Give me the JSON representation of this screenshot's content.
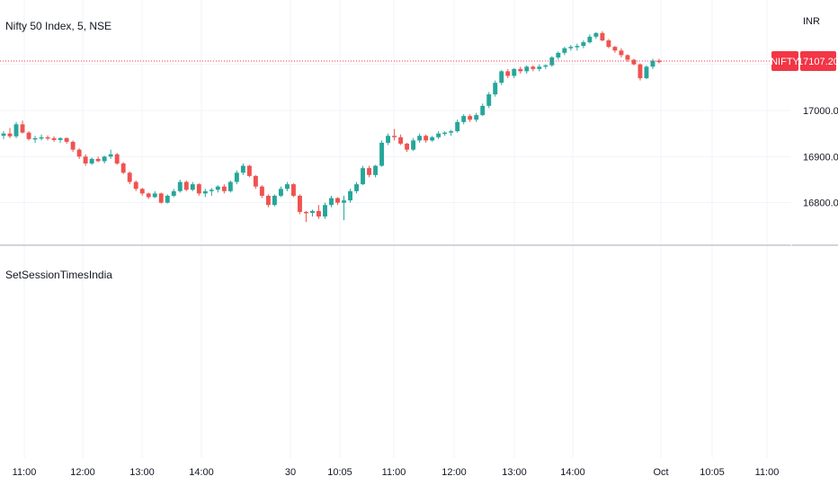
{
  "header": {
    "title": "Nifty 50 Index, 5, NSE"
  },
  "indicator": {
    "name": "SetSessionTimesIndia"
  },
  "colors": {
    "up": "#26a69a",
    "down": "#ef5350",
    "grid": "#f0f3fa",
    "badge": "#f23645"
  },
  "chart_data": {
    "type": "candlestick",
    "currency": "INR",
    "symbol_label": "NIFTY",
    "last_price_label": "17107.20",
    "last_price": 17107.2,
    "y_ticks": [
      {
        "value": 17000,
        "label": "17000.00"
      },
      {
        "value": 16900,
        "label": "16900.00"
      },
      {
        "value": 16800,
        "label": "16800.00"
      }
    ],
    "x_ticks": [
      "11:00",
      "12:00",
      "13:00",
      "14:00",
      "30",
      "10:05",
      "11:00",
      "12:00",
      "13:00",
      "14:00",
      "Oct",
      "10:05",
      "11:00"
    ],
    "candles": [
      [
        16945,
        16955,
        16938,
        16950
      ],
      [
        16950,
        16962,
        16940,
        16944
      ],
      [
        16944,
        16975,
        16940,
        16970
      ],
      [
        16970,
        16978,
        16950,
        16952
      ],
      [
        16952,
        16955,
        16935,
        16938
      ],
      [
        16938,
        16945,
        16930,
        16940
      ],
      [
        16940,
        16948,
        16935,
        16942
      ],
      [
        16942,
        16946,
        16935,
        16940
      ],
      [
        16940,
        16944,
        16932,
        16936
      ],
      [
        16936,
        16942,
        16930,
        16940
      ],
      [
        16940,
        16942,
        16928,
        16932
      ],
      [
        16932,
        16935,
        16910,
        16915
      ],
      [
        16915,
        16918,
        16895,
        16900
      ],
      [
        16900,
        16905,
        16880,
        16885
      ],
      [
        16885,
        16898,
        16882,
        16895
      ],
      [
        16895,
        16900,
        16888,
        16890
      ],
      [
        16890,
        16902,
        16885,
        16900
      ],
      [
        16900,
        16915,
        16895,
        16905
      ],
      [
        16905,
        16908,
        16882,
        16885
      ],
      [
        16885,
        16888,
        16862,
        16865
      ],
      [
        16865,
        16868,
        16840,
        16845
      ],
      [
        16845,
        16848,
        16825,
        16830
      ],
      [
        16830,
        16832,
        16815,
        16820
      ],
      [
        16820,
        16822,
        16808,
        16812
      ],
      [
        16812,
        16825,
        16810,
        16820
      ],
      [
        16820,
        16822,
        16798,
        16800
      ],
      [
        16800,
        16818,
        16798,
        16815
      ],
      [
        16815,
        16830,
        16812,
        16825
      ],
      [
        16825,
        16850,
        16822,
        16845
      ],
      [
        16845,
        16848,
        16825,
        16828
      ],
      [
        16828,
        16845,
        16825,
        16840
      ],
      [
        16840,
        16842,
        16815,
        16820
      ],
      [
        16820,
        16830,
        16812,
        16825
      ],
      [
        16825,
        16832,
        16815,
        16828
      ],
      [
        16828,
        16838,
        16822,
        16835
      ],
      [
        16835,
        16840,
        16820,
        16825
      ],
      [
        16825,
        16848,
        16822,
        16845
      ],
      [
        16845,
        16870,
        16840,
        16865
      ],
      [
        16865,
        16885,
        16860,
        16880
      ],
      [
        16880,
        16882,
        16855,
        16858
      ],
      [
        16858,
        16860,
        16830,
        16835
      ],
      [
        16835,
        16838,
        16810,
        16815
      ],
      [
        16815,
        16818,
        16790,
        16795
      ],
      [
        16795,
        16818,
        16792,
        16815
      ],
      [
        16815,
        16835,
        16812,
        16830
      ],
      [
        16830,
        16845,
        16825,
        16840
      ],
      [
        16840,
        16842,
        16812,
        16815
      ],
      [
        16815,
        16818,
        16775,
        16780
      ],
      [
        16780,
        16782,
        16758,
        16778
      ],
      [
        16778,
        16785,
        16770,
        16782
      ],
      [
        16782,
        16795,
        16765,
        16770
      ],
      [
        16770,
        16800,
        16765,
        16795
      ],
      [
        16795,
        16815,
        16790,
        16810
      ],
      [
        16810,
        16812,
        16795,
        16800
      ],
      [
        16800,
        16815,
        16762,
        16805
      ],
      [
        16805,
        16830,
        16800,
        16825
      ],
      [
        16825,
        16845,
        16820,
        16840
      ],
      [
        16840,
        16880,
        16838,
        16875
      ],
      [
        16875,
        16880,
        16855,
        16860
      ],
      [
        16860,
        16882,
        16855,
        16880
      ],
      [
        16880,
        16935,
        16878,
        16930
      ],
      [
        16930,
        16950,
        16925,
        16945
      ],
      [
        16945,
        16960,
        16935,
        16942
      ],
      [
        16942,
        16948,
        16925,
        16928
      ],
      [
        16928,
        16930,
        16910,
        16915
      ],
      [
        16915,
        16940,
        16912,
        16935
      ],
      [
        16935,
        16950,
        16930,
        16945
      ],
      [
        16945,
        16948,
        16930,
        16935
      ],
      [
        16935,
        16945,
        16932,
        16942
      ],
      [
        16942,
        16955,
        16938,
        16950
      ],
      [
        16950,
        16955,
        16945,
        16952
      ],
      [
        16952,
        16958,
        16945,
        16955
      ],
      [
        16955,
        16980,
        16952,
        16975
      ],
      [
        16975,
        16992,
        16970,
        16988
      ],
      [
        16988,
        16992,
        16975,
        16980
      ],
      [
        16980,
        16995,
        16975,
        16990
      ],
      [
        16990,
        17015,
        16988,
        17010
      ],
      [
        17010,
        17040,
        17005,
        17035
      ],
      [
        17035,
        17065,
        17030,
        17060
      ],
      [
        17060,
        17088,
        17055,
        17085
      ],
      [
        17085,
        17090,
        17070,
        17075
      ],
      [
        17075,
        17092,
        17070,
        17090
      ],
      [
        17090,
        17095,
        17080,
        17085
      ],
      [
        17085,
        17098,
        17080,
        17095
      ],
      [
        17095,
        17098,
        17085,
        17090
      ],
      [
        17090,
        17100,
        17085,
        17095
      ],
      [
        17095,
        17100,
        17090,
        17098
      ],
      [
        17098,
        17118,
        17095,
        17115
      ],
      [
        17115,
        17128,
        17110,
        17125
      ],
      [
        17125,
        17138,
        17120,
        17135
      ],
      [
        17135,
        17142,
        17130,
        17138
      ],
      [
        17138,
        17145,
        17130,
        17140
      ],
      [
        17140,
        17152,
        17135,
        17148
      ],
      [
        17148,
        17165,
        17145,
        17160
      ],
      [
        17160,
        17170,
        17155,
        17168
      ],
      [
        17168,
        17172,
        17150,
        17152
      ],
      [
        17152,
        17155,
        17135,
        17138
      ],
      [
        17138,
        17140,
        17125,
        17130
      ],
      [
        17130,
        17135,
        17115,
        17120
      ],
      [
        17120,
        17122,
        17105,
        17110
      ],
      [
        17110,
        17112,
        17098,
        17100
      ],
      [
        17100,
        17102,
        17065,
        17070
      ],
      [
        17070,
        17098,
        17068,
        17095
      ],
      [
        17095,
        17112,
        17090,
        17108
      ],
      [
        17108,
        17112,
        17102,
        17107.2
      ]
    ]
  }
}
